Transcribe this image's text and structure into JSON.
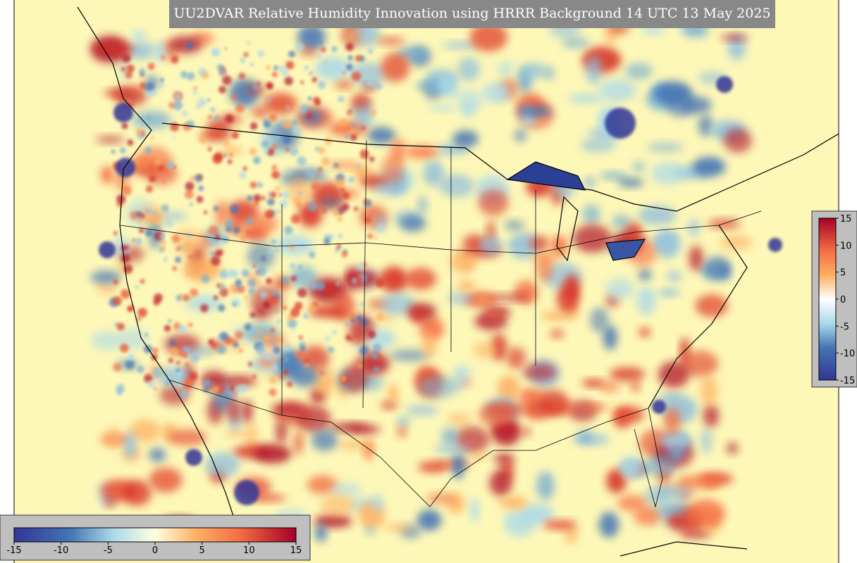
{
  "title": "UU2DVAR Relative Humidity Innovation using HRRR Background 14 UTC 13 May 2025",
  "colorbar_horizontal": {
    "ticks": [
      -15,
      -10,
      -5,
      0,
      5,
      10,
      15
    ]
  },
  "colorbar_vertical": {
    "ticks": [
      15,
      10,
      5,
      0,
      -5,
      -10,
      -15
    ]
  }
}
